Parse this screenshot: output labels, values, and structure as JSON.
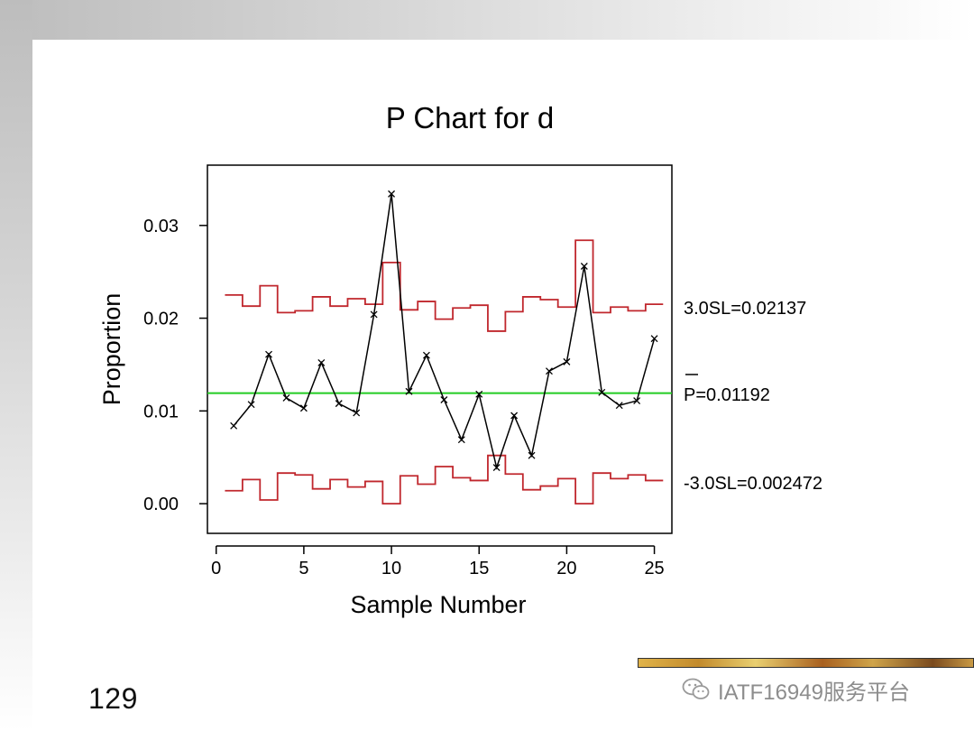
{
  "page": {
    "page_number": "129",
    "watermark_text": "IATF16949服务平台"
  },
  "chart_data": {
    "type": "line",
    "title": "P Chart for d",
    "xlabel": "Sample Number",
    "ylabel": "Proportion",
    "xlim": [
      -0.5,
      26.0
    ],
    "ylim": [
      -0.0032,
      0.0365
    ],
    "x_ticks": [
      0,
      5,
      10,
      15,
      20,
      25
    ],
    "y_ticks": [
      0.0,
      0.01,
      0.02,
      0.03
    ],
    "y_tick_labels": [
      "0.00",
      "0.01",
      "0.02",
      "0.03"
    ],
    "x": [
      1,
      2,
      3,
      4,
      5,
      6,
      7,
      8,
      9,
      10,
      11,
      12,
      13,
      14,
      15,
      16,
      17,
      18,
      19,
      20,
      21,
      22,
      23,
      24,
      25
    ],
    "series": [
      {
        "name": "Proportion",
        "color": "#000000",
        "marker": "x",
        "values": [
          0.0084,
          0.0107,
          0.0161,
          0.0114,
          0.0103,
          0.0152,
          0.0108,
          0.0098,
          0.0204,
          0.0334,
          0.0121,
          0.016,
          0.0112,
          0.0069,
          0.0118,
          0.0039,
          0.0095,
          0.0052,
          0.0143,
          0.0153,
          0.0256,
          0.012,
          0.0106,
          0.0111,
          0.0178
        ]
      },
      {
        "name": "UCL",
        "color": "#c0272d",
        "step": true,
        "values": [
          0.0225,
          0.0213,
          0.0235,
          0.0206,
          0.0208,
          0.0223,
          0.0213,
          0.0221,
          0.0215,
          0.026,
          0.0209,
          0.0218,
          0.0199,
          0.0211,
          0.0214,
          0.0186,
          0.0207,
          0.0223,
          0.022,
          0.0212,
          0.0284,
          0.0206,
          0.0212,
          0.0208,
          0.0215
        ]
      },
      {
        "name": "LCL",
        "color": "#c0272d",
        "step": true,
        "values": [
          0.0014,
          0.0026,
          0.0004,
          0.0033,
          0.0031,
          0.0016,
          0.0026,
          0.0018,
          0.0024,
          0.0,
          0.003,
          0.0021,
          0.004,
          0.0028,
          0.0025,
          0.0052,
          0.0032,
          0.0015,
          0.0019,
          0.0027,
          0.0,
          0.0033,
          0.0027,
          0.0031,
          0.0025
        ]
      }
    ],
    "center_line": {
      "value": 0.01192,
      "color": "#22cc22"
    },
    "annotations": {
      "ucl": "3.0SL=0.02137",
      "center": "P=0.01192",
      "lcl": "-3.0SL=0.002472"
    }
  }
}
